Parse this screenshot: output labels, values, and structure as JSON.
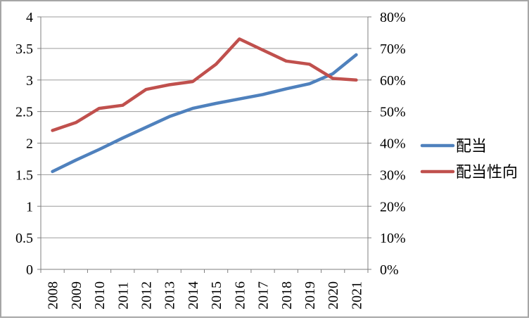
{
  "chart_data": {
    "type": "line",
    "title": "",
    "xlabel": "",
    "ylabel": "",
    "grid": true,
    "legend_position": "right",
    "categories": [
      "2008",
      "2009",
      "2010",
      "2011",
      "2012",
      "2013",
      "2014",
      "2015",
      "2016",
      "2017",
      "2018",
      "2019",
      "2020",
      "2021"
    ],
    "series": [
      {
        "name": "配当",
        "axis": "left",
        "color": "#4F81BD",
        "values": [
          1.55,
          1.73,
          1.9,
          2.08,
          2.25,
          2.42,
          2.55,
          2.63,
          2.7,
          2.77,
          2.86,
          2.94,
          3.1,
          3.4
        ]
      },
      {
        "name": "配当性向",
        "axis": "right",
        "color": "#C0504D",
        "values": [
          44,
          46.5,
          51,
          52,
          57,
          58.5,
          59.5,
          65,
          73,
          69.5,
          66,
          65,
          60.5,
          60
        ]
      }
    ],
    "left_axis": {
      "min": 0,
      "max": 4,
      "ticks": [
        "0",
        "0.5",
        "1",
        "1.5",
        "2",
        "2.5",
        "3",
        "3.5",
        "4"
      ]
    },
    "right_axis": {
      "min": 0,
      "max": 80,
      "ticks": [
        "0%",
        "10%",
        "20%",
        "30%",
        "40%",
        "50%",
        "60%",
        "70%",
        "80%"
      ]
    }
  },
  "colors": {
    "series_dividend": "#4F81BD",
    "series_payout": "#C0504D",
    "gridline": "#9C9C9C",
    "axis": "#7F7F7F",
    "text": "#000000",
    "frame_border": "#A6A6A6",
    "background": "#FFFFFF"
  }
}
